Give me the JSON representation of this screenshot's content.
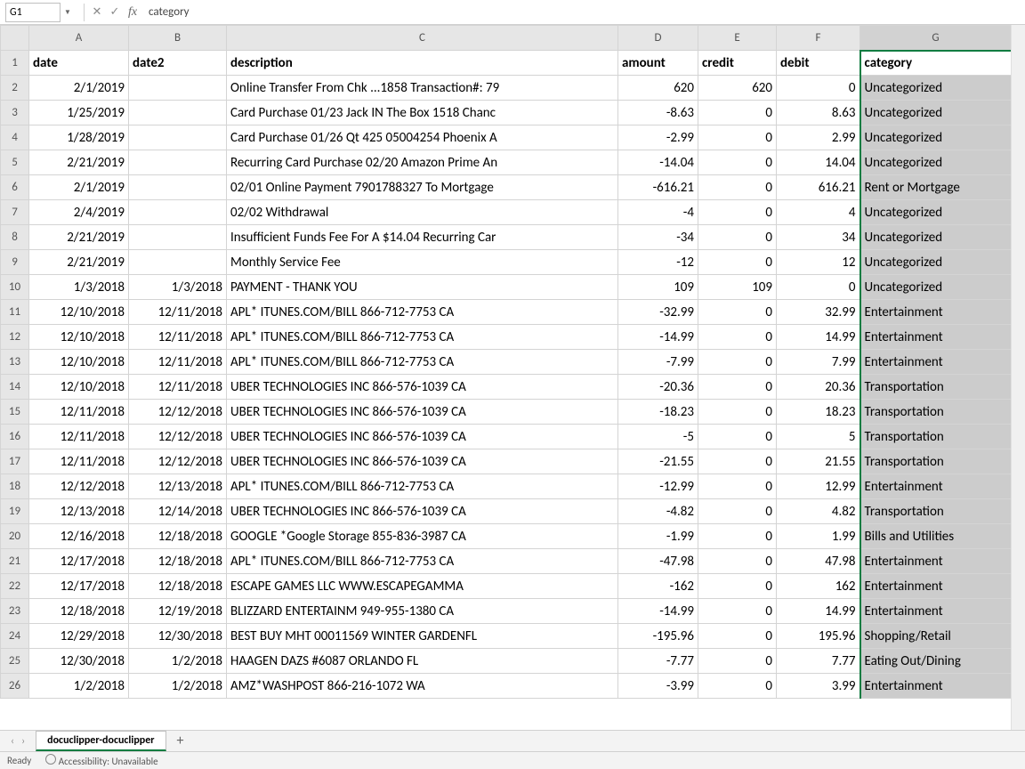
{
  "nameBox": "G1",
  "formula": "category",
  "statusReady": "Ready",
  "accessibility": "Accessibility: Unavailable",
  "sheetTab": "docuclipper-docuclipper",
  "columns": {
    "labels": [
      "A",
      "B",
      "C",
      "D",
      "E",
      "F",
      "G"
    ],
    "widths": [
      112,
      110,
      440,
      90,
      88,
      94,
      170
    ],
    "selected": "G"
  },
  "headers": [
    "date",
    "date2",
    "description",
    "amount",
    "credit",
    "debit",
    "category"
  ],
  "align": [
    "r",
    "r",
    "l",
    "r",
    "r",
    "r",
    "l"
  ],
  "rows": [
    [
      "2/1/2019",
      "",
      "Online Transfer From Chk ...1858 Transaction#: 79",
      "620",
      "620",
      "0",
      "Uncategorized"
    ],
    [
      "1/25/2019",
      "",
      "Card Purchase 01/23 Jack IN The Box 1518 Chanc",
      "-8.63",
      "0",
      "8.63",
      "Uncategorized"
    ],
    [
      "1/28/2019",
      "",
      "Card Purchase 01/26 Qt 425 05004254 Phoenix A",
      "-2.99",
      "0",
      "2.99",
      "Uncategorized"
    ],
    [
      "2/21/2019",
      "",
      "Recurring Card Purchase 02/20 Amazon Prime An",
      "-14.04",
      "0",
      "14.04",
      "Uncategorized"
    ],
    [
      "2/1/2019",
      "",
      "02/01 Online Payment 7901788327 To Mortgage",
      "-616.21",
      "0",
      "616.21",
      "Rent or Mortgage"
    ],
    [
      "2/4/2019",
      "",
      "02/02 Withdrawal",
      "-4",
      "0",
      "4",
      "Uncategorized"
    ],
    [
      "2/21/2019",
      "",
      "Insufficient Funds Fee For A $14.04 Recurring Car",
      "-34",
      "0",
      "34",
      "Uncategorized"
    ],
    [
      "2/21/2019",
      "",
      "Monthly Service Fee",
      "-12",
      "0",
      "12",
      "Uncategorized"
    ],
    [
      "1/3/2018",
      "1/3/2018",
      "PAYMENT - THANK YOU",
      "109",
      "109",
      "0",
      "Uncategorized"
    ],
    [
      "12/10/2018",
      "12/11/2018",
      "APL* ITUNES.COM/BILL 866-712-7753 CA",
      "-32.99",
      "0",
      "32.99",
      "Entertainment"
    ],
    [
      "12/10/2018",
      "12/11/2018",
      "APL* ITUNES.COM/BILL 866-712-7753 CA",
      "-14.99",
      "0",
      "14.99",
      "Entertainment"
    ],
    [
      "12/10/2018",
      "12/11/2018",
      "APL* ITUNES.COM/BILL 866-712-7753 CA",
      "-7.99",
      "0",
      "7.99",
      "Entertainment"
    ],
    [
      "12/10/2018",
      "12/11/2018",
      "UBER TECHNOLOGIES INC 866-576-1039 CA",
      "-20.36",
      "0",
      "20.36",
      "Transportation"
    ],
    [
      "12/11/2018",
      "12/12/2018",
      "UBER TECHNOLOGIES INC 866-576-1039 CA",
      "-18.23",
      "0",
      "18.23",
      "Transportation"
    ],
    [
      "12/11/2018",
      "12/12/2018",
      "UBER TECHNOLOGIES INC 866-576-1039 CA",
      "-5",
      "0",
      "5",
      "Transportation"
    ],
    [
      "12/11/2018",
      "12/12/2018",
      "UBER TECHNOLOGIES INC 866-576-1039 CA",
      "-21.55",
      "0",
      "21.55",
      "Transportation"
    ],
    [
      "12/12/2018",
      "12/13/2018",
      "APL* ITUNES.COM/BILL 866-712-7753 CA",
      "-12.99",
      "0",
      "12.99",
      "Entertainment"
    ],
    [
      "12/13/2018",
      "12/14/2018",
      "UBER TECHNOLOGIES INC 866-576-1039 CA",
      "-4.82",
      "0",
      "4.82",
      "Transportation"
    ],
    [
      "12/16/2018",
      "12/18/2018",
      "GOOGLE *Google Storage 855-836-3987 CA",
      "-1.99",
      "0",
      "1.99",
      "Bills and Utilities"
    ],
    [
      "12/17/2018",
      "12/18/2018",
      "APL* ITUNES.COM/BILL 866-712-7753 CA",
      "-47.98",
      "0",
      "47.98",
      "Entertainment"
    ],
    [
      "12/17/2018",
      "12/18/2018",
      "ESCAPE GAMES LLC WWW.ESCAPEGAMMA",
      "-162",
      "0",
      "162",
      "Entertainment"
    ],
    [
      "12/18/2018",
      "12/19/2018",
      "BLIZZARD ENTERTAINM 949-955-1380 CA",
      "-14.99",
      "0",
      "14.99",
      "Entertainment"
    ],
    [
      "12/29/2018",
      "12/30/2018",
      "BEST BUY MHT 00011569 WINTER GARDENFL",
      "-195.96",
      "0",
      "195.96",
      "Shopping/Retail"
    ],
    [
      "12/30/2018",
      "1/2/2018",
      "HAAGEN DAZS #6087 ORLANDO FL",
      "-7.77",
      "0",
      "7.77",
      "Eating Out/Dining"
    ],
    [
      "1/2/2018",
      "1/2/2018",
      "AMZ*WASHPOST 866-216-1072 WA",
      "-3.99",
      "0",
      "3.99",
      "Entertainment"
    ]
  ],
  "colors": {
    "selectedBorder": "#107c41",
    "selectedFill": "#cccccc",
    "gridLine": "#d4d4d4",
    "headerBg": "#e6e6e6"
  }
}
